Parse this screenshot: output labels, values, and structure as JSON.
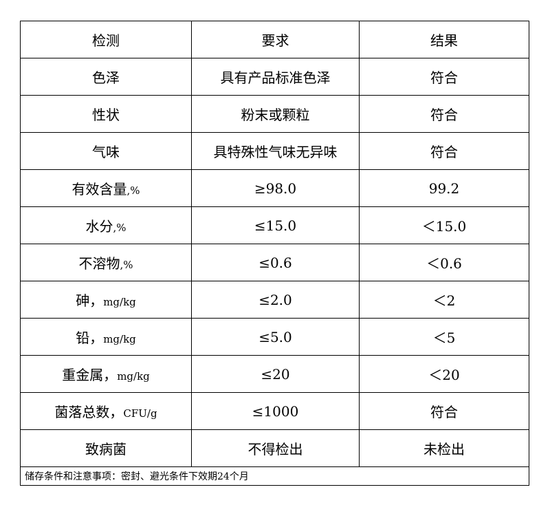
{
  "table": {
    "headers": [
      "检测",
      "要求",
      "结果"
    ],
    "rows": [
      {
        "item": "色泽",
        "unit": "",
        "requirement": "具有产品标准色泽",
        "result": "符合"
      },
      {
        "item": "性状",
        "unit": "",
        "requirement": "粉末或颗粒",
        "result": "符合"
      },
      {
        "item": "气味",
        "unit": "",
        "requirement": "具特殊性气味无异味",
        "result": "符合"
      },
      {
        "item": "有效含量",
        "unit": ",%",
        "requirement": "≥98.0",
        "result": "99.2"
      },
      {
        "item": "水分",
        "unit": ",%",
        "requirement": "≤15.0",
        "result": "＜15.0"
      },
      {
        "item": "不溶物",
        "unit": ",%",
        "requirement": "≤0.6",
        "result": "＜0.6"
      },
      {
        "item": "砷，",
        "unit": "mg/kg",
        "requirement": "≤2.0",
        "result": "＜2"
      },
      {
        "item": "铅，",
        "unit": "mg/kg",
        "requirement": "≤5.0",
        "result": "＜5"
      },
      {
        "item": "重金属，",
        "unit": "mg/kg",
        "requirement": "≤20",
        "result": "＜20"
      },
      {
        "item": "菌落总数，",
        "unit": "CFU/g",
        "requirement": "≤1000",
        "result": "符合"
      },
      {
        "item": "致病菌",
        "unit": "",
        "requirement": "不得检出",
        "result": "未检出"
      }
    ],
    "footer": "储存条件和注意事项：密封、避光条件下效期24个月"
  }
}
